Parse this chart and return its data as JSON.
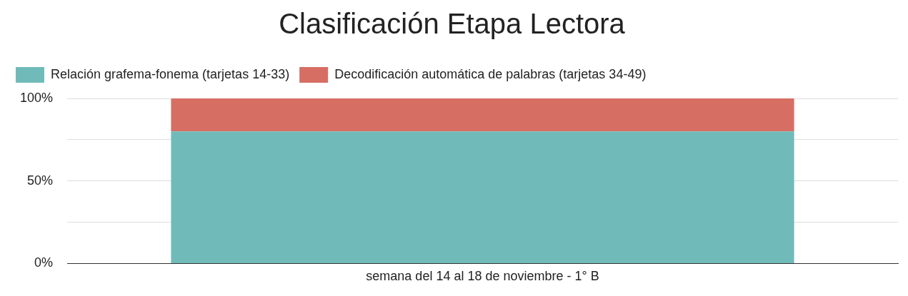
{
  "chart_data": {
    "type": "bar",
    "title": "Clasificación Etapa Lectora",
    "stacked": true,
    "categories": [
      "semana del 14 al 18 de noviembre - 1° B"
    ],
    "series": [
      {
        "name": "Relación grafema-fonema (tarjetas 14-33)",
        "color": "#70bbb9",
        "values": [
          80
        ]
      },
      {
        "name": "Decodificación automática de palabras (tarjetas 34-49)",
        "color": "#d76e64",
        "values": [
          20
        ]
      }
    ],
    "ylim": [
      0,
      100
    ],
    "yticks": [
      {
        "value": 0,
        "label": "0%"
      },
      {
        "value": 25,
        "label": null
      },
      {
        "value": 50,
        "label": "50%"
      },
      {
        "value": 75,
        "label": null
      },
      {
        "value": 100,
        "label": "100%"
      }
    ],
    "grid": "y",
    "legend": "top left"
  }
}
